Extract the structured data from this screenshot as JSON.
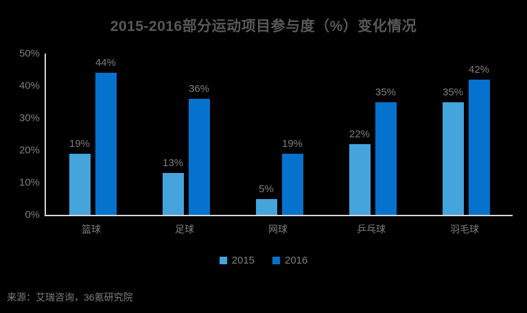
{
  "chart_data": {
    "type": "bar",
    "title": "2015-2016部分运动项目参与度（%）变化情况",
    "categories": [
      "篮球",
      "足球",
      "网球",
      "乒乓球",
      "羽毛球"
    ],
    "series": [
      {
        "name": "2015",
        "color": "#45a4dc",
        "values": [
          19,
          13,
          5,
          22,
          35
        ]
      },
      {
        "name": "2016",
        "color": "#0572cd",
        "values": [
          44,
          36,
          19,
          35,
          42
        ]
      }
    ],
    "data_labels": [
      [
        "19%",
        "13%",
        "5%",
        "22%",
        "35%"
      ],
      [
        "44%",
        "36%",
        "19%",
        "35%",
        "42%"
      ]
    ],
    "ylim": [
      0,
      50
    ],
    "yticks": [
      {
        "value": 0,
        "label": "0%"
      },
      {
        "value": 10,
        "label": "10%"
      },
      {
        "value": 20,
        "label": "20%"
      },
      {
        "value": 30,
        "label": "30%"
      },
      {
        "value": 40,
        "label": "40%"
      },
      {
        "value": 50,
        "label": "50%"
      }
    ],
    "grid": false,
    "legend_position": "bottom",
    "xlabel": "",
    "ylabel": ""
  },
  "source": "来源：艾瑞咨询，36氪研究院",
  "colors": {
    "background": "#000000",
    "title": "#595959",
    "label": "#7f7f7f",
    "axis_line": "#d9d9d9"
  }
}
